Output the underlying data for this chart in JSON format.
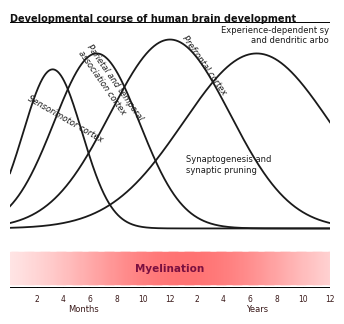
{
  "title": "Developmental course of human brain development",
  "curve_color": "#1a1a1a",
  "myelination_label": "Myelination",
  "label_sensorimotor": "Sensorimotor cortex",
  "label_parietal": "Parietal and temporal\nassociation cortex",
  "label_prefrontal": "Prefrontal cortex",
  "label_experience": "Experience-dependent sy\nand dendritic arbo",
  "label_synaptogenesis": "Synaptogenesis and\nsynaptic pruning",
  "xlabel_months": "Months",
  "xlabel_years": "Years",
  "months_ticks": [
    "2",
    "4",
    "6",
    "8",
    "10",
    "12"
  ],
  "years_ticks": [
    "2",
    "4",
    "6",
    "8",
    "10",
    "12"
  ],
  "sens_mu": 3.2,
  "sens_sigma": 2.2,
  "sens_amp": 0.8,
  "pari_mu": 6.5,
  "pari_sigma": 3.2,
  "pari_amp": 0.88,
  "pref_mu": 12.0,
  "pref_sigma": 4.5,
  "pref_amp": 0.95,
  "exp_mu": 18.5,
  "exp_sigma": 5.5,
  "exp_amp": 0.88,
  "xlim_min": 0,
  "xlim_max": 24,
  "ylim_min": -0.3,
  "ylim_max": 1.1,
  "myel_ybot": -0.28,
  "myel_ytop": -0.12
}
